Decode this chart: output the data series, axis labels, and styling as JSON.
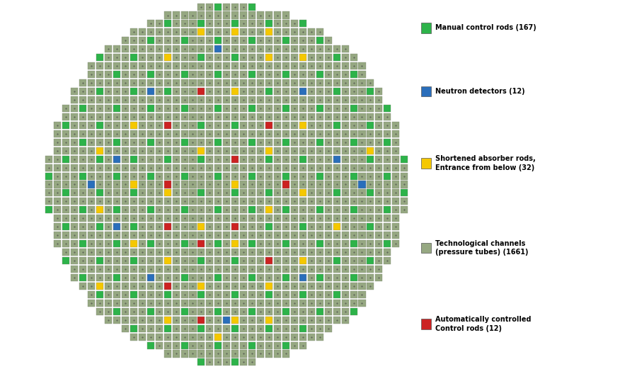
{
  "fig_width": 8.76,
  "fig_height": 5.21,
  "dpi": 100,
  "colors": {
    "green": "#2db34a",
    "blue": "#2a6ebb",
    "yellow": "#f5c800",
    "gray": "#96a882",
    "red": "#cc2222",
    "background": "#ffffff",
    "cell_border": "#7a8870",
    "dot": "#444444"
  },
  "legend_items": [
    {
      "color": "#2db34a",
      "label": "Manual control rods (167)"
    },
    {
      "color": "#2a6ebb",
      "label": "Neutron detectors (12)"
    },
    {
      "color": "#f5c800",
      "label": "Shortened absorber rods,\nEntrance from below (32)"
    },
    {
      "color": "#96a882",
      "label": "Technological channels\n(pressure tubes) (1661)"
    },
    {
      "color": "#cc2222",
      "label": "Automatically controlled\nControl rods (12)"
    }
  ]
}
